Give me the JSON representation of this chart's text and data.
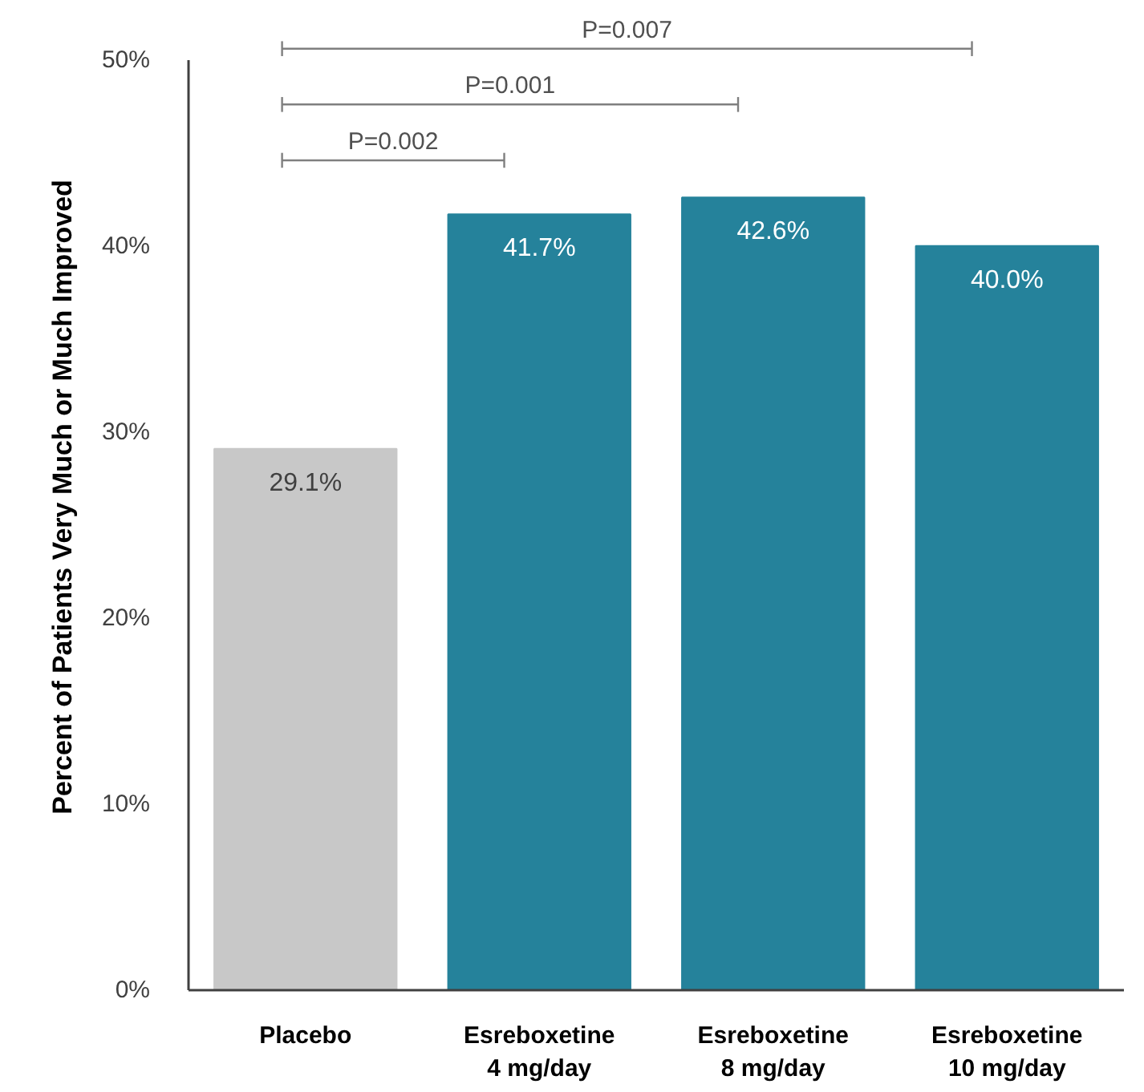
{
  "chart_data": {
    "type": "bar",
    "ylabel": "Percent of Patients Very Much or Much Improved",
    "categories": [
      "Placebo",
      "Esreboxetine\n4 mg/day",
      "Esreboxetine\n8 mg/day",
      "Esreboxetine\n10 mg/day"
    ],
    "values": [
      29.1,
      41.7,
      42.6,
      40.0
    ],
    "colors": [
      "#c8c8c8",
      "#25829b",
      "#25829b",
      "#25829b"
    ],
    "value_labels": [
      "29.1%",
      "41.7%",
      "42.6%",
      "40.0%"
    ],
    "ylim": [
      0,
      50
    ],
    "yticks": [
      {
        "value": 0,
        "label": "0%"
      },
      {
        "value": 10,
        "label": "10%"
      },
      {
        "value": 20,
        "label": "20%"
      },
      {
        "value": 30,
        "label": "30%"
      },
      {
        "value": 40,
        "label": "40%"
      },
      {
        "value": 50,
        "label": "50%"
      }
    ],
    "annotations": [
      "P=0.002",
      "P=0.001",
      "P=0.007"
    ]
  }
}
